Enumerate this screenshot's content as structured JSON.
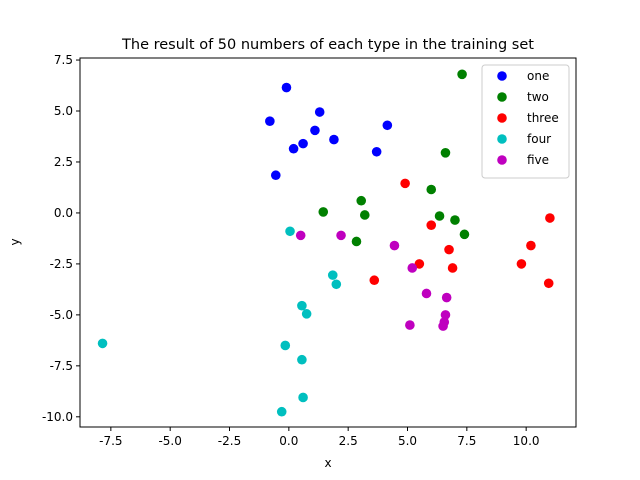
{
  "chart_data": {
    "type": "scatter",
    "title": "The result of 50 numbers of each type in the training set",
    "xlabel": "x",
    "ylabel": "y",
    "xlim": [
      -8.8,
      12.1
    ],
    "ylim": [
      -10.5,
      7.6
    ],
    "xticks": [
      -7.5,
      -5.0,
      -2.5,
      0.0,
      2.5,
      5.0,
      7.5,
      10.0
    ],
    "yticks": [
      -10.0,
      -7.5,
      -5.0,
      -2.5,
      0.0,
      2.5,
      5.0,
      7.5
    ],
    "grid": false,
    "legend_position": "top-right",
    "series": [
      {
        "name": "one",
        "color": "#0000ff",
        "points": [
          [
            -0.8,
            4.5
          ],
          [
            -0.1,
            6.15
          ],
          [
            1.3,
            4.95
          ],
          [
            1.1,
            4.05
          ],
          [
            4.15,
            4.3
          ],
          [
            1.9,
            3.6
          ],
          [
            0.6,
            3.4
          ],
          [
            0.2,
            3.15
          ],
          [
            3.7,
            3.0
          ],
          [
            -0.55,
            1.85
          ]
        ]
      },
      {
        "name": "two",
        "color": "#008000",
        "points": [
          [
            7.3,
            6.8
          ],
          [
            6.6,
            2.95
          ],
          [
            6.0,
            1.15
          ],
          [
            3.05,
            0.6
          ],
          [
            1.45,
            0.05
          ],
          [
            3.2,
            -0.1
          ],
          [
            6.35,
            -0.15
          ],
          [
            7.0,
            -0.35
          ],
          [
            7.4,
            -1.05
          ],
          [
            2.85,
            -1.4
          ]
        ]
      },
      {
        "name": "three",
        "color": "#ff0000",
        "points": [
          [
            4.9,
            1.45
          ],
          [
            6.0,
            -0.6
          ],
          [
            11.0,
            -0.25
          ],
          [
            10.2,
            -1.6
          ],
          [
            6.75,
            -1.8
          ],
          [
            9.8,
            -2.5
          ],
          [
            5.5,
            -2.5
          ],
          [
            6.9,
            -2.7
          ],
          [
            3.6,
            -3.3
          ],
          [
            10.95,
            -3.45
          ]
        ]
      },
      {
        "name": "four",
        "color": "#00bfbf",
        "points": [
          [
            0.05,
            -0.9
          ],
          [
            1.85,
            -3.05
          ],
          [
            2.0,
            -3.5
          ],
          [
            0.55,
            -4.55
          ],
          [
            0.75,
            -4.95
          ],
          [
            -7.85,
            -6.4
          ],
          [
            -0.15,
            -6.5
          ],
          [
            0.55,
            -7.2
          ],
          [
            0.6,
            -9.05
          ],
          [
            -0.3,
            -9.75
          ]
        ]
      },
      {
        "name": "five",
        "color": "#bf00bf",
        "points": [
          [
            0.5,
            -1.1
          ],
          [
            2.2,
            -1.1
          ],
          [
            4.45,
            -1.6
          ],
          [
            5.2,
            -2.7
          ],
          [
            5.8,
            -3.95
          ],
          [
            6.65,
            -4.15
          ],
          [
            6.6,
            -5.0
          ],
          [
            6.55,
            -5.35
          ],
          [
            6.5,
            -5.55
          ],
          [
            5.1,
            -5.5
          ]
        ]
      }
    ]
  }
}
